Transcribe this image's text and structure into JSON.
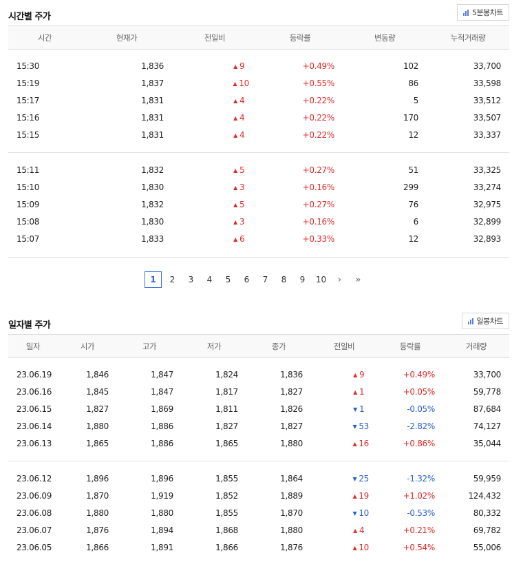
{
  "intraday": {
    "title": "시간별 주가",
    "chart_button": "5분봉차트",
    "columns": [
      "시간",
      "현재가",
      "전일비",
      "등락률",
      "변동량",
      "누적거래량"
    ],
    "groups": [
      [
        {
          "time": "15:30",
          "price": "1,836",
          "dir": "up",
          "change": "9",
          "rate": "+0.49%",
          "volume": "102",
          "cum": "33,700"
        },
        {
          "time": "15:19",
          "price": "1,837",
          "dir": "up",
          "change": "10",
          "rate": "+0.55%",
          "volume": "86",
          "cum": "33,598"
        },
        {
          "time": "15:17",
          "price": "1,831",
          "dir": "up",
          "change": "4",
          "rate": "+0.22%",
          "volume": "5",
          "cum": "33,512"
        },
        {
          "time": "15:16",
          "price": "1,831",
          "dir": "up",
          "change": "4",
          "rate": "+0.22%",
          "volume": "170",
          "cum": "33,507"
        },
        {
          "time": "15:15",
          "price": "1,831",
          "dir": "up",
          "change": "4",
          "rate": "+0.22%",
          "volume": "12",
          "cum": "33,337"
        }
      ],
      [
        {
          "time": "15:11",
          "price": "1,832",
          "dir": "up",
          "change": "5",
          "rate": "+0.27%",
          "volume": "51",
          "cum": "33,325"
        },
        {
          "time": "15:10",
          "price": "1,830",
          "dir": "up",
          "change": "3",
          "rate": "+0.16%",
          "volume": "299",
          "cum": "33,274"
        },
        {
          "time": "15:09",
          "price": "1,832",
          "dir": "up",
          "change": "5",
          "rate": "+0.27%",
          "volume": "76",
          "cum": "32,975"
        },
        {
          "time": "15:08",
          "price": "1,830",
          "dir": "up",
          "change": "3",
          "rate": "+0.16%",
          "volume": "6",
          "cum": "32,899"
        },
        {
          "time": "15:07",
          "price": "1,833",
          "dir": "up",
          "change": "6",
          "rate": "+0.33%",
          "volume": "12",
          "cum": "32,893"
        }
      ]
    ]
  },
  "pagination": {
    "pages": [
      "1",
      "2",
      "3",
      "4",
      "5",
      "6",
      "7",
      "8",
      "9",
      "10"
    ],
    "current": "1",
    "next_icon": "chevron-right-icon",
    "last_icon": "double-chevron-right-icon"
  },
  "daily": {
    "title": "일자별 주가",
    "chart_button": "일봉차트",
    "columns": [
      "일자",
      "시가",
      "고가",
      "저가",
      "종가",
      "전일비",
      "등락률",
      "거래량"
    ],
    "groups": [
      [
        {
          "date": "23.06.19",
          "open": "1,846",
          "high": "1,847",
          "low": "1,824",
          "close": "1,836",
          "dir": "up",
          "change": "9",
          "rate": "+0.49%",
          "volume": "33,700"
        },
        {
          "date": "23.06.16",
          "open": "1,845",
          "high": "1,847",
          "low": "1,817",
          "close": "1,827",
          "dir": "up",
          "change": "1",
          "rate": "+0.05%",
          "volume": "59,778"
        },
        {
          "date": "23.06.15",
          "open": "1,827",
          "high": "1,869",
          "low": "1,811",
          "close": "1,826",
          "dir": "down",
          "change": "1",
          "rate": "-0.05%",
          "volume": "87,684"
        },
        {
          "date": "23.06.14",
          "open": "1,880",
          "high": "1,886",
          "low": "1,827",
          "close": "1,827",
          "dir": "down",
          "change": "53",
          "rate": "-2.82%",
          "volume": "74,127"
        },
        {
          "date": "23.06.13",
          "open": "1,865",
          "high": "1,886",
          "low": "1,865",
          "close": "1,880",
          "dir": "up",
          "change": "16",
          "rate": "+0.86%",
          "volume": "35,044"
        }
      ],
      [
        {
          "date": "23.06.12",
          "open": "1,896",
          "high": "1,896",
          "low": "1,855",
          "close": "1,864",
          "dir": "down",
          "change": "25",
          "rate": "-1.32%",
          "volume": "59,959"
        },
        {
          "date": "23.06.09",
          "open": "1,870",
          "high": "1,919",
          "low": "1,852",
          "close": "1,889",
          "dir": "up",
          "change": "19",
          "rate": "+1.02%",
          "volume": "124,432"
        },
        {
          "date": "23.06.08",
          "open": "1,880",
          "high": "1,880",
          "low": "1,855",
          "close": "1,870",
          "dir": "down",
          "change": "10",
          "rate": "-0.53%",
          "volume": "80,332"
        },
        {
          "date": "23.06.07",
          "open": "1,876",
          "high": "1,894",
          "low": "1,868",
          "close": "1,880",
          "dir": "up",
          "change": "4",
          "rate": "+0.21%",
          "volume": "69,782"
        },
        {
          "date": "23.06.05",
          "open": "1,866",
          "high": "1,891",
          "low": "1,866",
          "close": "1,876",
          "dir": "up",
          "change": "10",
          "rate": "+0.54%",
          "volume": "55,006"
        }
      ]
    ]
  },
  "colors": {
    "up": "#e12b2b",
    "down": "#2a5fd0",
    "accent": "#3b6fd1"
  }
}
